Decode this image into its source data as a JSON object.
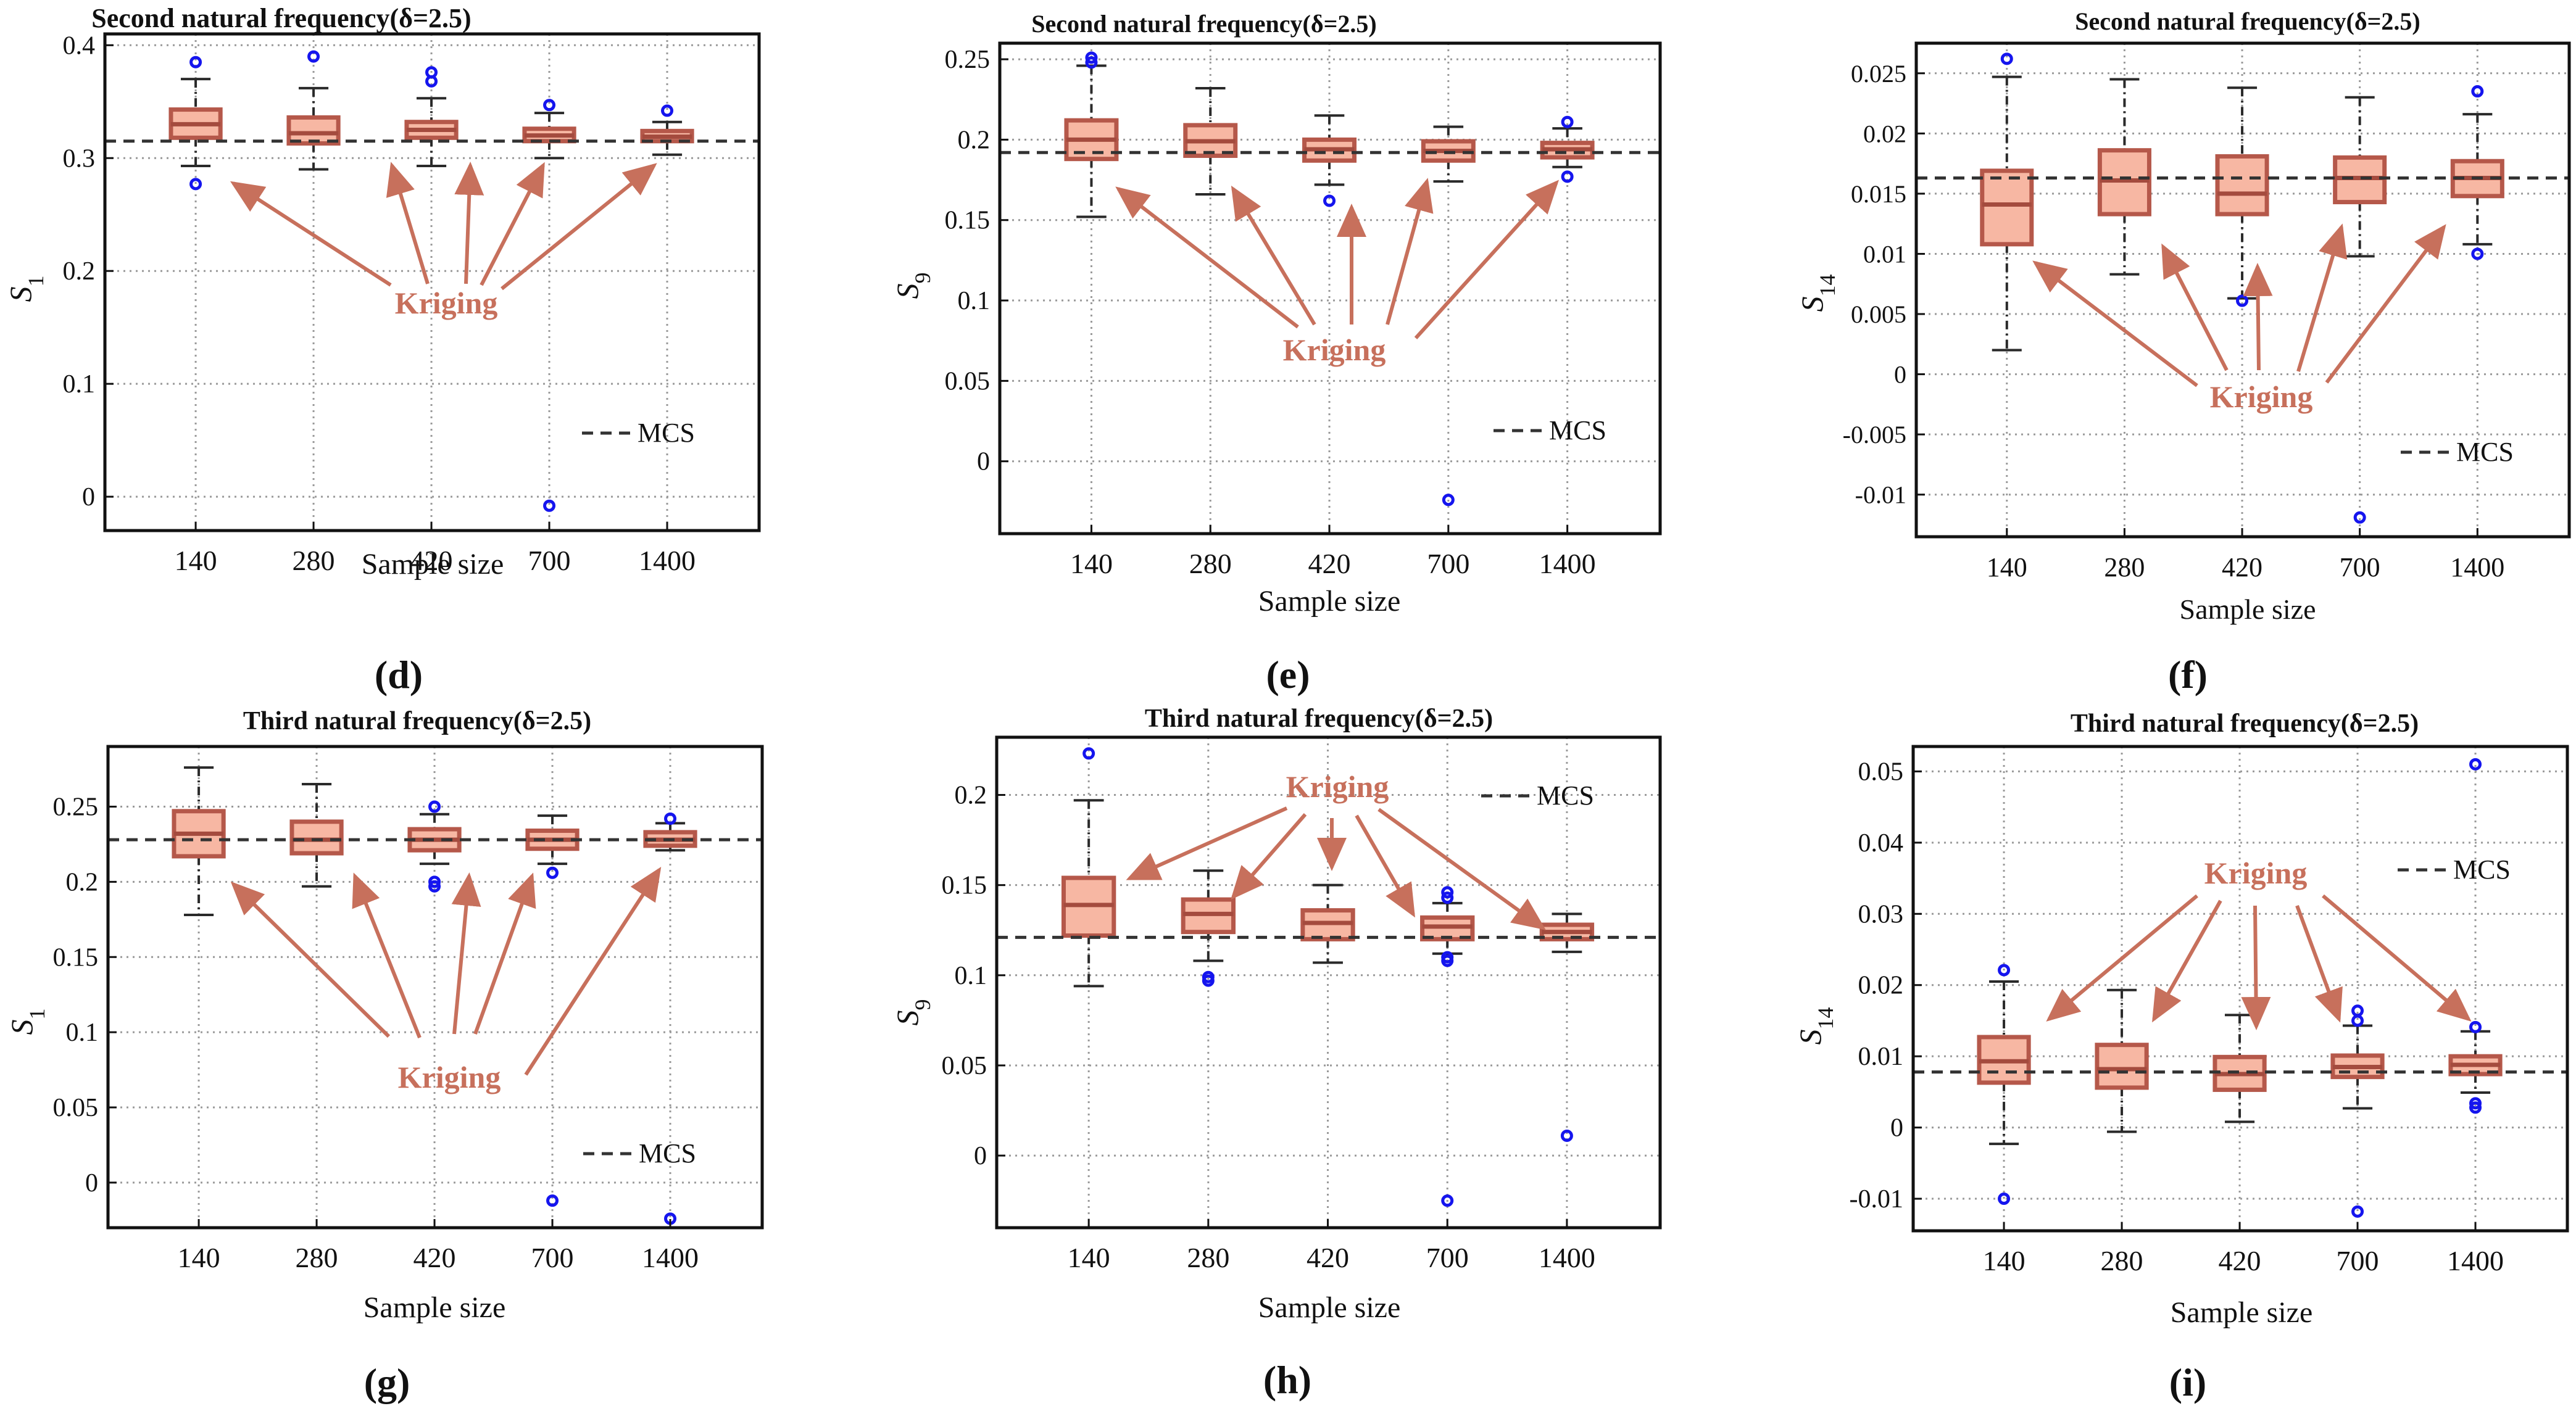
{
  "colors": {
    "box_fill": "#f7b7a3",
    "box_edge": "#b5584a",
    "median": "#a44b3e",
    "arrow": "#c7705c",
    "outlier": "#1515ee",
    "mcs_line": "#333333",
    "grid": "#9a9a9a",
    "whisker": "#2a2a2a"
  },
  "chart_data": [
    {
      "id": "d",
      "type": "box",
      "panel_label": "(d)",
      "title": "Second natural frequency(δ=2.5)",
      "xlabel": "Sample size",
      "ylabel_base": "S",
      "ylabel_sub": "1",
      "categories": [
        "140",
        "280",
        "420",
        "700",
        "1400"
      ],
      "ylim": [
        -0.03,
        0.41
      ],
      "yticks": [
        0,
        0.1,
        0.2,
        0.3,
        0.4
      ],
      "ytick_labels": [
        "0",
        "0.1",
        "0.2",
        "0.3",
        "0.4"
      ],
      "mcs": 0.315,
      "boxes": [
        {
          "wlo": 0.293,
          "q1": 0.318,
          "median": 0.33,
          "q3": 0.343,
          "whi": 0.37,
          "outliers": [
            0.385,
            0.277
          ]
        },
        {
          "wlo": 0.29,
          "q1": 0.313,
          "median": 0.322,
          "q3": 0.336,
          "whi": 0.362,
          "outliers": [
            0.39
          ]
        },
        {
          "wlo": 0.293,
          "q1": 0.318,
          "median": 0.325,
          "q3": 0.332,
          "whi": 0.353,
          "outliers": [
            0.376,
            0.368
          ]
        },
        {
          "wlo": 0.3,
          "q1": 0.315,
          "median": 0.32,
          "q3": 0.326,
          "whi": 0.34,
          "outliers": [
            0.347,
            -0.008
          ]
        },
        {
          "wlo": 0.303,
          "q1": 0.315,
          "median": 0.319,
          "q3": 0.324,
          "whi": 0.332,
          "outliers": [
            0.342
          ]
        }
      ],
      "annotation": "Kriging",
      "legend_label": "MCS"
    },
    {
      "id": "e",
      "type": "box",
      "panel_label": "(e)",
      "title": "Second natural frequency(δ=2.5)",
      "xlabel": "Sample size",
      "ylabel_base": "S",
      "ylabel_sub": "9",
      "categories": [
        "140",
        "280",
        "420",
        "700",
        "1400"
      ],
      "ylim": [
        -0.045,
        0.26
      ],
      "yticks": [
        0,
        0.05,
        0.1,
        0.15,
        0.2,
        0.25
      ],
      "ytick_labels": [
        "0",
        "0.05",
        "0.1",
        "0.15",
        "0.2",
        "0.25"
      ],
      "mcs": 0.192,
      "boxes": [
        {
          "wlo": 0.152,
          "q1": 0.188,
          "median": 0.2,
          "q3": 0.212,
          "whi": 0.246,
          "outliers": [
            0.251,
            0.248
          ]
        },
        {
          "wlo": 0.166,
          "q1": 0.19,
          "median": 0.199,
          "q3": 0.209,
          "whi": 0.232,
          "outliers": []
        },
        {
          "wlo": 0.172,
          "q1": 0.187,
          "median": 0.194,
          "q3": 0.2,
          "whi": 0.215,
          "outliers": [
            0.162
          ]
        },
        {
          "wlo": 0.174,
          "q1": 0.187,
          "median": 0.193,
          "q3": 0.199,
          "whi": 0.208,
          "outliers": [
            -0.024
          ]
        },
        {
          "wlo": 0.183,
          "q1": 0.189,
          "median": 0.194,
          "q3": 0.198,
          "whi": 0.207,
          "outliers": [
            0.211,
            0.177
          ]
        }
      ],
      "annotation": "Kriging",
      "legend_label": "MCS"
    },
    {
      "id": "f",
      "type": "box",
      "panel_label": "(f)",
      "title": "Second natural frequency(δ=2.5)",
      "xlabel": "Sample size",
      "ylabel_base": "S",
      "ylabel_sub": "14",
      "categories": [
        "140",
        "280",
        "420",
        "700",
        "1400"
      ],
      "ylim": [
        -0.0135,
        0.0275
      ],
      "yticks": [
        -0.01,
        -0.005,
        0,
        0.005,
        0.01,
        0.015,
        0.02,
        0.025
      ],
      "ytick_labels": [
        "-0.01",
        "-0.005",
        "0",
        "0.005",
        "0.01",
        "0.015",
        "0.02",
        "0.025"
      ],
      "mcs": 0.0163,
      "boxes": [
        {
          "wlo": 0.002,
          "q1": 0.0108,
          "median": 0.0141,
          "q3": 0.0169,
          "whi": 0.0247,
          "outliers": [
            0.0262
          ]
        },
        {
          "wlo": 0.0083,
          "q1": 0.0133,
          "median": 0.0161,
          "q3": 0.0186,
          "whi": 0.0245,
          "outliers": []
        },
        {
          "wlo": 0.0063,
          "q1": 0.0133,
          "median": 0.015,
          "q3": 0.0181,
          "whi": 0.0238,
          "outliers": [
            0.0061
          ]
        },
        {
          "wlo": 0.0098,
          "q1": 0.0143,
          "median": 0.0163,
          "q3": 0.018,
          "whi": 0.023,
          "outliers": [
            -0.0119
          ]
        },
        {
          "wlo": 0.0108,
          "q1": 0.0148,
          "median": 0.0163,
          "q3": 0.0177,
          "whi": 0.0216,
          "outliers": [
            0.0235,
            0.01
          ]
        }
      ],
      "annotation": "Kriging",
      "legend_label": "MCS"
    },
    {
      "id": "g",
      "type": "box",
      "panel_label": "(g)",
      "title": "Third natural frequency(δ=2.5)",
      "xlabel": "Sample size",
      "ylabel_base": "S",
      "ylabel_sub": "1",
      "categories": [
        "140",
        "280",
        "420",
        "700",
        "1400"
      ],
      "ylim": [
        -0.03,
        0.29
      ],
      "yticks": [
        0,
        0.05,
        0.1,
        0.15,
        0.2,
        0.25
      ],
      "ytick_labels": [
        "0",
        "0.05",
        "0.1",
        "0.15",
        "0.2",
        "0.25"
      ],
      "mcs": 0.228,
      "boxes": [
        {
          "wlo": 0.178,
          "q1": 0.217,
          "median": 0.232,
          "q3": 0.247,
          "whi": 0.276,
          "outliers": []
        },
        {
          "wlo": 0.197,
          "q1": 0.219,
          "median": 0.228,
          "q3": 0.24,
          "whi": 0.265,
          "outliers": []
        },
        {
          "wlo": 0.212,
          "q1": 0.221,
          "median": 0.228,
          "q3": 0.235,
          "whi": 0.245,
          "outliers": [
            0.25,
            0.2,
            0.197
          ]
        },
        {
          "wlo": 0.212,
          "q1": 0.222,
          "median": 0.228,
          "q3": 0.234,
          "whi": 0.244,
          "outliers": [
            0.206,
            -0.012
          ]
        },
        {
          "wlo": 0.221,
          "q1": 0.224,
          "median": 0.228,
          "q3": 0.233,
          "whi": 0.239,
          "outliers": [
            0.242,
            -0.024
          ]
        }
      ],
      "annotation": "Kriging",
      "legend_label": "MCS"
    },
    {
      "id": "h",
      "type": "box",
      "panel_label": "(h)",
      "title": "Third natural frequency(δ=2.5)",
      "xlabel": "Sample size",
      "ylabel_base": "S",
      "ylabel_sub": "9",
      "categories": [
        "140",
        "280",
        "420",
        "700",
        "1400"
      ],
      "ylim": [
        -0.04,
        0.232
      ],
      "yticks": [
        0,
        0.05,
        0.1,
        0.15,
        0.2
      ],
      "ytick_labels": [
        "0",
        "0.05",
        "0.1",
        "0.15",
        "0.2"
      ],
      "mcs": 0.121,
      "boxes": [
        {
          "wlo": 0.094,
          "q1": 0.122,
          "median": 0.139,
          "q3": 0.154,
          "whi": 0.197,
          "outliers": [
            0.223
          ]
        },
        {
          "wlo": 0.108,
          "q1": 0.124,
          "median": 0.134,
          "q3": 0.142,
          "whi": 0.158,
          "outliers": [
            0.099,
            0.097
          ]
        },
        {
          "wlo": 0.107,
          "q1": 0.12,
          "median": 0.129,
          "q3": 0.136,
          "whi": 0.15,
          "outliers": []
        },
        {
          "wlo": 0.112,
          "q1": 0.12,
          "median": 0.127,
          "q3": 0.132,
          "whi": 0.14,
          "outliers": [
            0.146,
            0.143,
            0.11,
            0.108,
            -0.025
          ]
        },
        {
          "wlo": 0.113,
          "q1": 0.12,
          "median": 0.124,
          "q3": 0.128,
          "whi": 0.134,
          "outliers": [
            0.011
          ]
        }
      ],
      "annotation": "Kriging",
      "legend_label": "MCS"
    },
    {
      "id": "i",
      "type": "box",
      "panel_label": "(i)",
      "title": "Third natural frequency(δ=2.5)",
      "xlabel": "Sample size",
      "ylabel_base": "S",
      "ylabel_sub": "14",
      "categories": [
        "140",
        "280",
        "420",
        "700",
        "1400"
      ],
      "ylim": [
        -0.0145,
        0.0535
      ],
      "yticks": [
        -0.01,
        0,
        0.01,
        0.02,
        0.03,
        0.04,
        0.05
      ],
      "ytick_labels": [
        "-0.01",
        "0",
        "0.01",
        "0.02",
        "0.03",
        "0.04",
        "0.05"
      ],
      "mcs": 0.0078,
      "boxes": [
        {
          "wlo": -0.0023,
          "q1": 0.0063,
          "median": 0.0093,
          "q3": 0.0127,
          "whi": 0.0205,
          "outliers": [
            0.0221,
            -0.01
          ]
        },
        {
          "wlo": -0.0006,
          "q1": 0.0056,
          "median": 0.0082,
          "q3": 0.0116,
          "whi": 0.0193,
          "outliers": []
        },
        {
          "wlo": 0.0008,
          "q1": 0.0053,
          "median": 0.0075,
          "q3": 0.0099,
          "whi": 0.0158,
          "outliers": []
        },
        {
          "wlo": 0.0027,
          "q1": 0.0071,
          "median": 0.0085,
          "q3": 0.0101,
          "whi": 0.0143,
          "outliers": [
            0.0164,
            0.015,
            -0.0118
          ]
        },
        {
          "wlo": 0.0049,
          "q1": 0.0075,
          "median": 0.0088,
          "q3": 0.01,
          "whi": 0.0135,
          "outliers": [
            0.0141,
            0.0034,
            0.0028,
            0.051
          ]
        }
      ],
      "annotation": "Kriging",
      "legend_label": "MCS"
    }
  ]
}
